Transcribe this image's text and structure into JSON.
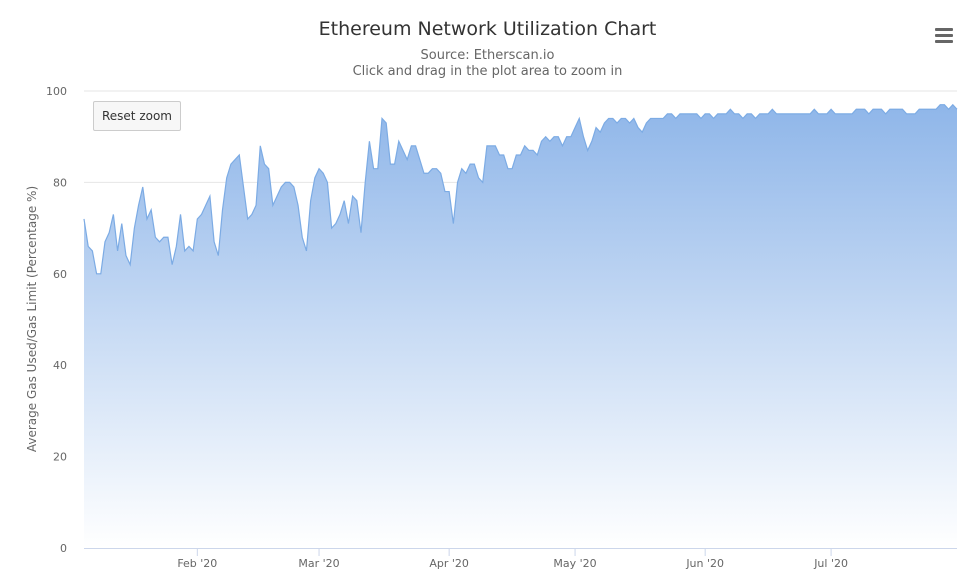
{
  "header": {
    "title": "Ethereum Network Utilization Chart",
    "subtitle_source": "Source: Etherscan.io",
    "subtitle_hint": "Click and drag in the plot area to zoom in"
  },
  "controls": {
    "reset_zoom_label": "Reset zoom",
    "menu_icon": "hamburger-menu-icon"
  },
  "colors": {
    "series_line": "#7cabe4",
    "area_top": "#8fb6e9",
    "area_bottom": "#ffffff",
    "grid": "#e6e6e6"
  },
  "chart_data": {
    "type": "area",
    "title": "Ethereum Network Utilization Chart",
    "subtitle": "Source: Etherscan.io",
    "xlabel": "",
    "ylabel": "Average Gas Used/Gas Limit (Percentage %)",
    "ylim": [
      0,
      100
    ],
    "yticks": [
      0,
      20,
      40,
      60,
      80,
      100
    ],
    "xlim": [
      "2020-01-05",
      "2020-07-31"
    ],
    "xticks": [
      {
        "date": "2020-02-01",
        "label": "Feb '20"
      },
      {
        "date": "2020-03-01",
        "label": "Mar '20"
      },
      {
        "date": "2020-04-01",
        "label": "Apr '20"
      },
      {
        "date": "2020-05-01",
        "label": "May '20"
      },
      {
        "date": "2020-06-01",
        "label": "Jun '20"
      },
      {
        "date": "2020-07-01",
        "label": "Jul '20"
      }
    ],
    "grid": true,
    "legend": "none",
    "series": [
      {
        "x": [
          "2020-01-05",
          "2020-01-06",
          "2020-01-07",
          "2020-01-08",
          "2020-01-09",
          "2020-01-10",
          "2020-01-11",
          "2020-01-12",
          "2020-01-13",
          "2020-01-14",
          "2020-01-15",
          "2020-01-16",
          "2020-01-17",
          "2020-01-18",
          "2020-01-19",
          "2020-01-20",
          "2020-01-21",
          "2020-01-22",
          "2020-01-23",
          "2020-01-24",
          "2020-01-25",
          "2020-01-26",
          "2020-01-27",
          "2020-01-28",
          "2020-01-29",
          "2020-01-30",
          "2020-01-31",
          "2020-02-01",
          "2020-02-02",
          "2020-02-03",
          "2020-02-04",
          "2020-02-05",
          "2020-02-06",
          "2020-02-07",
          "2020-02-08",
          "2020-02-09",
          "2020-02-10",
          "2020-02-11",
          "2020-02-12",
          "2020-02-13",
          "2020-02-14",
          "2020-02-15",
          "2020-02-16",
          "2020-02-17",
          "2020-02-18",
          "2020-02-19",
          "2020-02-20",
          "2020-02-21",
          "2020-02-22",
          "2020-02-23",
          "2020-02-24",
          "2020-02-25",
          "2020-02-26",
          "2020-02-27",
          "2020-02-28",
          "2020-02-29",
          "2020-03-01",
          "2020-03-02",
          "2020-03-03",
          "2020-03-04",
          "2020-03-05",
          "2020-03-06",
          "2020-03-07",
          "2020-03-08",
          "2020-03-09",
          "2020-03-10",
          "2020-03-11",
          "2020-03-12",
          "2020-03-13",
          "2020-03-14",
          "2020-03-15",
          "2020-03-16",
          "2020-03-17",
          "2020-03-18",
          "2020-03-19",
          "2020-03-20",
          "2020-03-21",
          "2020-03-22",
          "2020-03-23",
          "2020-03-24",
          "2020-03-25",
          "2020-03-26",
          "2020-03-27",
          "2020-03-28",
          "2020-03-29",
          "2020-03-30",
          "2020-03-31",
          "2020-04-01",
          "2020-04-02",
          "2020-04-03",
          "2020-04-04",
          "2020-04-05",
          "2020-04-06",
          "2020-04-07",
          "2020-04-08",
          "2020-04-09",
          "2020-04-10",
          "2020-04-11",
          "2020-04-12",
          "2020-04-13",
          "2020-04-14",
          "2020-04-15",
          "2020-04-16",
          "2020-04-17",
          "2020-04-18",
          "2020-04-19",
          "2020-04-20",
          "2020-04-21",
          "2020-04-22",
          "2020-04-23",
          "2020-04-24",
          "2020-04-25",
          "2020-04-26",
          "2020-04-27",
          "2020-04-28",
          "2020-04-29",
          "2020-04-30",
          "2020-05-01",
          "2020-05-02",
          "2020-05-03",
          "2020-05-04",
          "2020-05-05",
          "2020-05-06",
          "2020-05-07",
          "2020-05-08",
          "2020-05-09",
          "2020-05-10",
          "2020-05-11",
          "2020-05-12",
          "2020-05-13",
          "2020-05-14",
          "2020-05-15",
          "2020-05-16",
          "2020-05-17",
          "2020-05-18",
          "2020-05-19",
          "2020-05-20",
          "2020-05-21",
          "2020-05-22",
          "2020-05-23",
          "2020-05-24",
          "2020-05-25",
          "2020-05-26",
          "2020-05-27",
          "2020-05-28",
          "2020-05-29",
          "2020-05-30",
          "2020-05-31",
          "2020-06-01",
          "2020-06-02",
          "2020-06-03",
          "2020-06-04",
          "2020-06-05",
          "2020-06-06",
          "2020-06-07",
          "2020-06-08",
          "2020-06-09",
          "2020-06-10",
          "2020-06-11",
          "2020-06-12",
          "2020-06-13",
          "2020-06-14",
          "2020-06-15",
          "2020-06-16",
          "2020-06-17",
          "2020-06-18",
          "2020-06-19",
          "2020-06-20",
          "2020-06-21",
          "2020-06-22",
          "2020-06-23",
          "2020-06-24",
          "2020-06-25",
          "2020-06-26",
          "2020-06-27",
          "2020-06-28",
          "2020-06-29",
          "2020-06-30",
          "2020-07-01",
          "2020-07-02",
          "2020-07-03",
          "2020-07-04",
          "2020-07-05",
          "2020-07-06",
          "2020-07-07",
          "2020-07-08",
          "2020-07-09",
          "2020-07-10",
          "2020-07-11",
          "2020-07-12",
          "2020-07-13",
          "2020-07-14",
          "2020-07-15",
          "2020-07-16",
          "2020-07-17",
          "2020-07-18",
          "2020-07-19",
          "2020-07-20",
          "2020-07-21",
          "2020-07-22",
          "2020-07-23",
          "2020-07-24",
          "2020-07-25",
          "2020-07-26",
          "2020-07-27",
          "2020-07-28",
          "2020-07-29",
          "2020-07-30",
          "2020-07-31"
        ],
        "values": [
          72,
          66,
          65,
          60,
          60,
          67,
          69,
          73,
          65,
          71,
          64,
          62,
          70,
          75,
          79,
          72,
          74,
          68,
          67,
          68,
          68,
          62,
          66,
          73,
          65,
          66,
          65,
          72,
          73,
          75,
          77,
          67,
          64,
          74,
          81,
          84,
          85,
          86,
          79,
          72,
          73,
          75,
          88,
          84,
          83,
          75,
          77,
          79,
          80,
          80,
          79,
          75,
          68,
          65,
          76,
          81,
          83,
          82,
          80,
          70,
          71,
          73,
          76,
          71,
          77,
          76,
          69,
          80,
          89,
          83,
          83,
          94,
          93,
          84,
          84,
          89,
          87,
          85,
          88,
          88,
          85,
          82,
          82,
          83,
          83,
          82,
          78,
          78,
          71,
          80,
          83,
          82,
          84,
          84,
          81,
          80,
          88,
          88,
          88,
          86,
          86,
          83,
          83,
          86,
          86,
          88,
          87,
          87,
          86,
          89,
          90,
          89,
          90,
          90,
          88,
          90,
          90,
          92,
          94,
          90,
          87,
          89,
          92,
          91,
          93,
          94,
          94,
          93,
          94,
          94,
          93,
          94,
          92,
          91,
          93,
          94,
          94,
          94,
          94,
          95,
          95,
          94,
          95,
          95,
          95,
          95,
          95,
          94,
          95,
          95,
          94,
          95,
          95,
          95,
          96,
          95,
          95,
          94,
          95,
          95,
          94,
          95,
          95,
          95,
          96,
          95,
          95,
          95,
          95,
          95,
          95,
          95,
          95,
          95,
          96,
          95,
          95,
          95,
          96,
          95,
          95,
          95,
          95,
          95,
          96,
          96,
          96,
          95,
          96,
          96,
          96,
          95,
          96,
          96,
          96,
          96,
          95,
          95,
          95,
          96,
          96,
          96,
          96,
          96,
          97,
          97,
          96,
          97,
          96
        ]
      }
    ]
  }
}
